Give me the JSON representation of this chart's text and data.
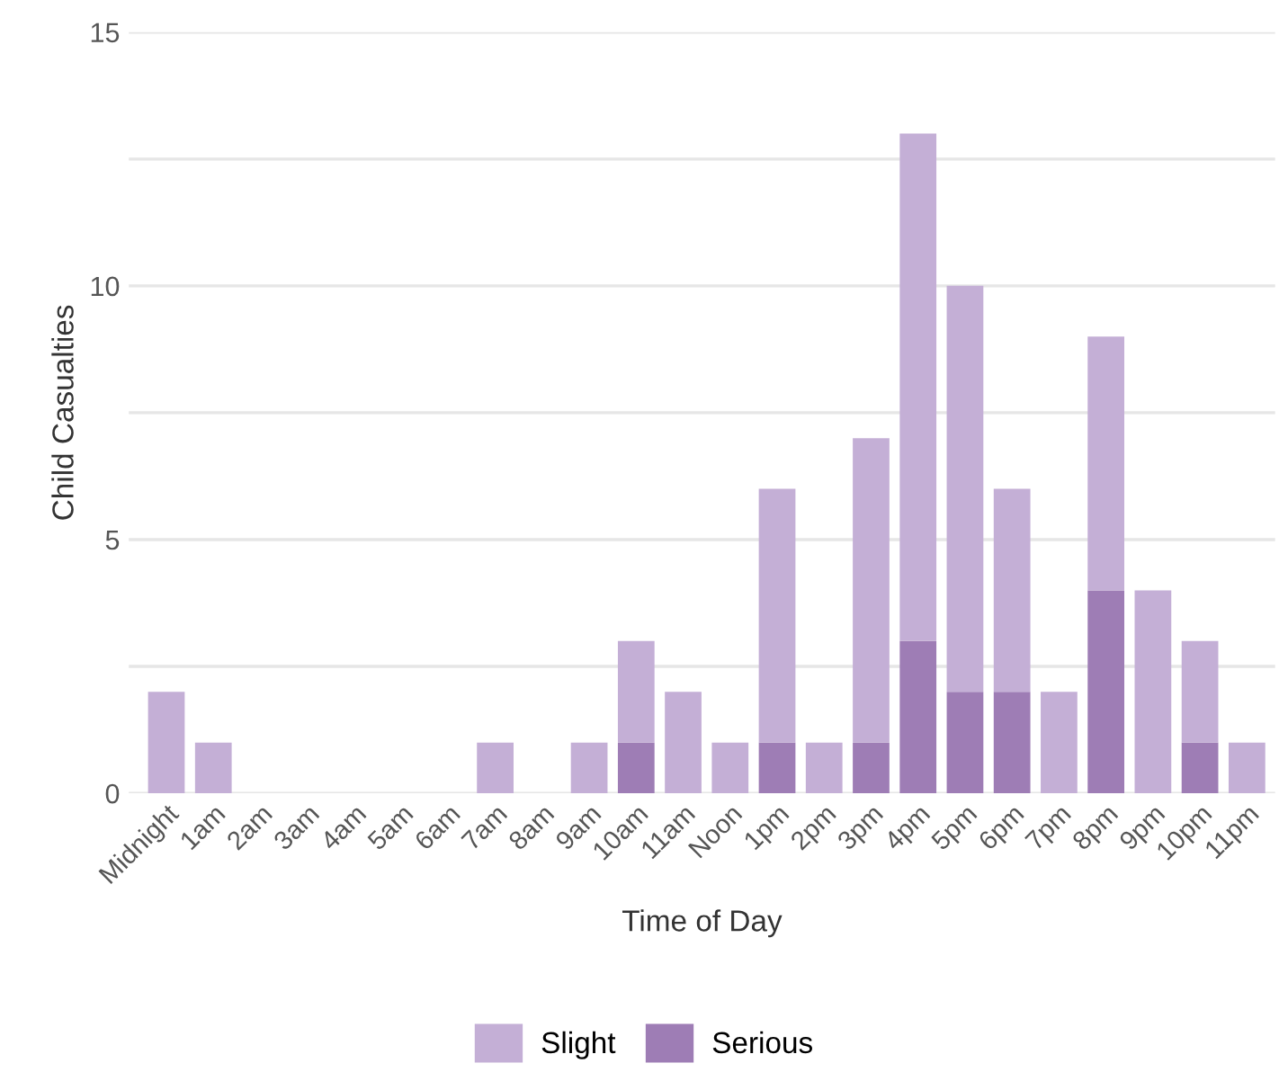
{
  "chart_data": {
    "type": "bar",
    "stacked": true,
    "xlabel": "Time of Day",
    "ylabel": "Child Casualties",
    "categories": [
      "Midnight",
      "1am",
      "2am",
      "3am",
      "4am",
      "5am",
      "6am",
      "7am",
      "8am",
      "9am",
      "10am",
      "11am",
      "Noon",
      "1pm",
      "2pm",
      "3pm",
      "4pm",
      "5pm",
      "6pm",
      "7pm",
      "8pm",
      "9pm",
      "10pm",
      "11pm"
    ],
    "series": [
      {
        "name": "Serious",
        "color": "#9e7db5",
        "values": [
          0,
          0,
          0,
          0,
          0,
          0,
          0,
          0,
          0,
          0,
          1,
          0,
          0,
          1,
          0,
          1,
          3,
          2,
          2,
          0,
          4,
          0,
          1,
          0
        ]
      },
      {
        "name": "Slight",
        "color": "#c4afd6",
        "values": [
          2,
          1,
          0,
          0,
          0,
          0,
          0,
          1,
          0,
          1,
          2,
          2,
          1,
          5,
          1,
          6,
          10,
          8,
          4,
          2,
          5,
          4,
          2,
          1
        ]
      }
    ],
    "ylim": [
      0,
      15
    ],
    "yticks": [
      0,
      {
        "value": 2.5,
        "label": null
      },
      5,
      {
        "value": 7.5,
        "label": null
      },
      10,
      {
        "value": 12.5,
        "label": null
      },
      15
    ],
    "grid": "y",
    "legend": "bottom"
  }
}
